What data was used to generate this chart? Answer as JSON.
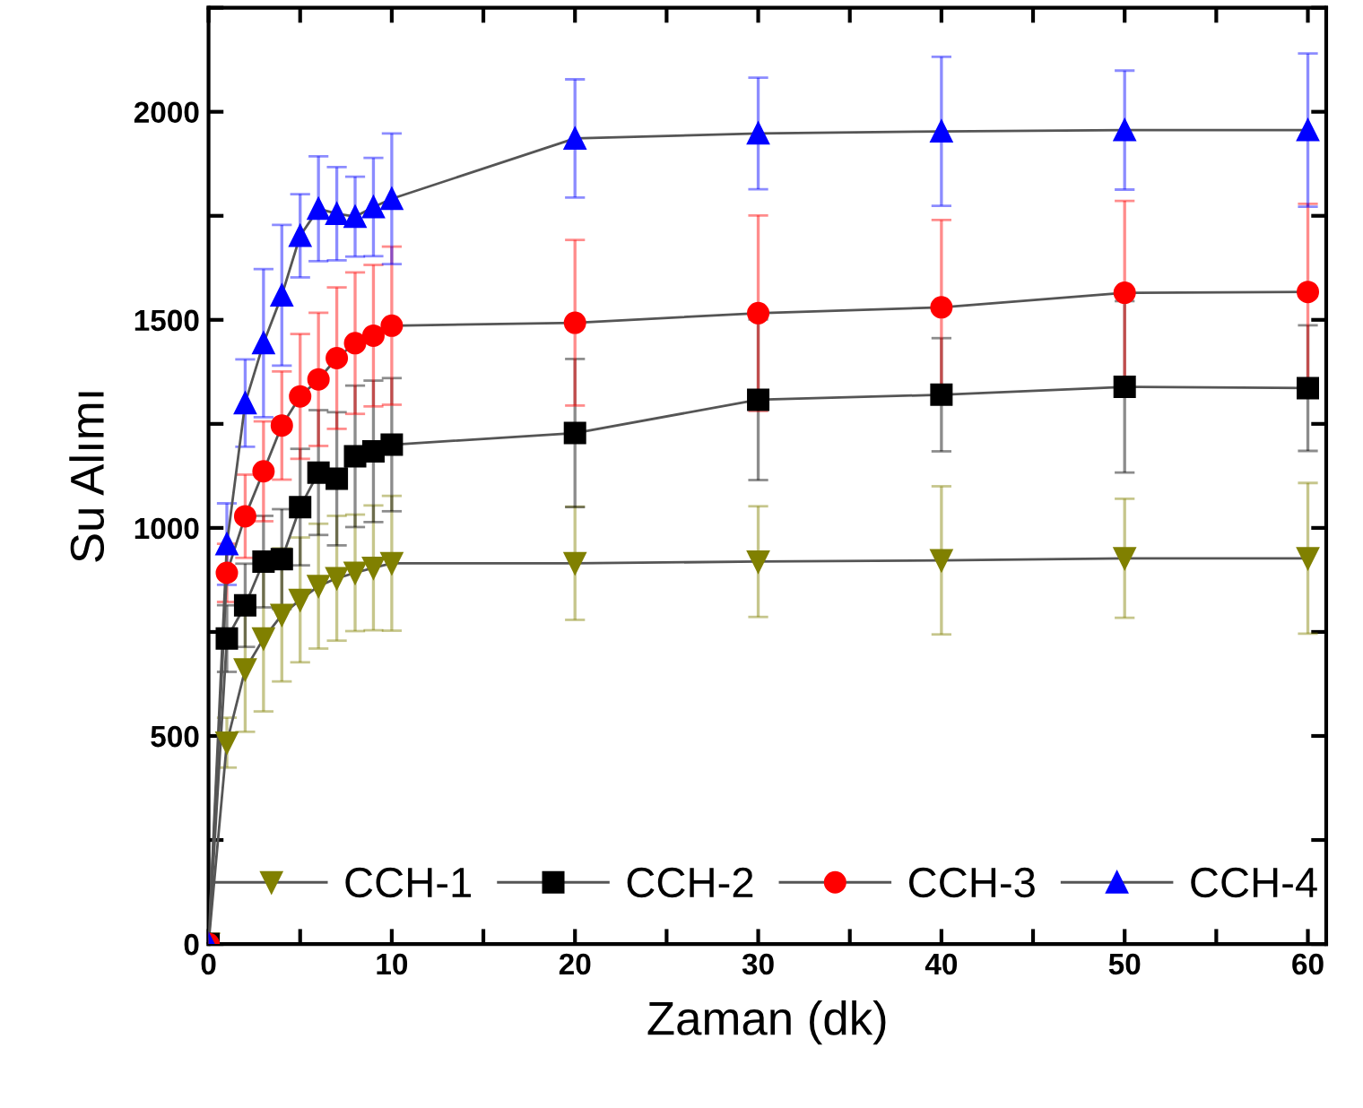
{
  "chart_data": {
    "type": "line",
    "xlabel": "Zaman (dk)",
    "ylabel": "Su Alımı",
    "x": [
      0,
      1,
      2,
      3,
      4,
      5,
      6,
      7,
      8,
      9,
      10,
      20,
      30,
      40,
      50,
      60
    ],
    "xlim": [
      0,
      61
    ],
    "ylim": [
      0,
      2250
    ],
    "xticks": [
      0,
      {
        "value": 5,
        "label": null
      },
      10,
      {
        "value": 15,
        "label": null
      },
      20,
      {
        "value": 25,
        "label": null
      },
      30,
      {
        "value": 35,
        "label": null
      },
      40,
      {
        "value": 45,
        "label": null
      },
      50,
      {
        "value": 55,
        "label": null
      },
      60
    ],
    "yticks": [
      0,
      {
        "value": 250,
        "label": null
      },
      500,
      {
        "value": 750,
        "label": null
      },
      1000,
      {
        "value": 1250,
        "label": null
      },
      1500,
      {
        "value": 1750,
        "label": null
      },
      2000,
      {
        "value": 2250,
        "label": null
      }
    ],
    "grid": false,
    "legend": "bottom",
    "line_style": "solid",
    "series": [
      {
        "name": "CCH-1",
        "color": "#808000",
        "marker": "triangle_down",
        "values": [
          0,
          484,
          660,
          734,
          791,
          827,
          860,
          879,
          892,
          904,
          915,
          915,
          919,
          922,
          927,
          927
        ],
        "errors": [
          null,
          60,
          150,
          175,
          160,
          150,
          150,
          150,
          140,
          150,
          162,
          136,
          133,
          178,
          143,
          181
        ]
      },
      {
        "name": "CCH-2",
        "color": "#000000",
        "marker": "square",
        "values": [
          0,
          734,
          814,
          919,
          925,
          1050,
          1133,
          1118,
          1172,
          1184,
          1200,
          1228,
          1308,
          1320,
          1339,
          1336
        ],
        "errors": [
          null,
          80,
          100,
          110,
          120,
          140,
          150,
          160,
          170,
          170,
          160,
          178,
          193,
          136,
          206,
          151
        ]
      },
      {
        "name": "CCH-3",
        "color": "#ff0000",
        "marker": "circle",
        "values": [
          0,
          892,
          1028,
          1136,
          1246,
          1316,
          1357,
          1408,
          1444,
          1462,
          1486,
          1493,
          1516,
          1530,
          1565,
          1567
        ],
        "errors": [
          null,
          70,
          100,
          120,
          130,
          150,
          160,
          170,
          170,
          170,
          190,
          199,
          235,
          210,
          221,
          212
        ]
      },
      {
        "name": "CCH-4",
        "color": "#0000ff",
        "marker": "triangle",
        "values": [
          0,
          961,
          1300,
          1444,
          1559,
          1702,
          1767,
          1755,
          1748,
          1771,
          1791,
          1936,
          1948,
          1953,
          1956,
          1956
        ],
        "errors": [
          null,
          98,
          105,
          178,
          169,
          100,
          126,
          112,
          96,
          118,
          157,
          142,
          134,
          179,
          143,
          184
        ]
      }
    ]
  }
}
